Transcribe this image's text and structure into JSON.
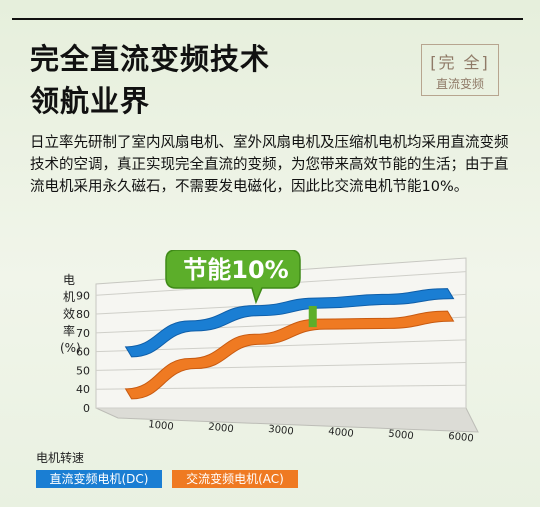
{
  "title": {
    "line1": "完全直流变频技术",
    "line2": "领航业界"
  },
  "badge": {
    "main": "[完 全]",
    "sub": "直流变频"
  },
  "paragraph": "日立率先研制了室内风扇电机、室外风扇电机及压缩机电机均采用直流变频技术的空调，真正实现完全直流的变频，为您带来高效节能的生活；由于直流电机采用永久磁石，不需要发电磁化，因此比交流电机节能10%。",
  "callout": "节能10%",
  "chart_data": {
    "type": "area",
    "ylabel": "电机效率(%)",
    "xlabel": "电机转速",
    "x": [
      1000,
      2000,
      3000,
      4000,
      5000,
      6000
    ],
    "y_ticks": [
      0,
      40,
      50,
      60,
      70,
      80,
      90
    ],
    "series": [
      {
        "name": "直流变频电机(DC)",
        "values": [
          62,
          74,
          80,
          82,
          82,
          83
        ]
      },
      {
        "name": "交流变频电机(AC)",
        "values": [
          40,
          55,
          66,
          72,
          71,
          73
        ]
      }
    ],
    "colors": {
      "dc": "#1a7ed3",
      "ac": "#ef7a22",
      "callout": "#5cae2a"
    }
  },
  "legend": {
    "dc": "直流变频电机(DC)",
    "ac": "交流变频电机(AC)"
  },
  "axis": {
    "ylabel_chars": [
      "电",
      "机",
      "效",
      "率",
      "(%)"
    ],
    "xlabel": "电机转速"
  }
}
